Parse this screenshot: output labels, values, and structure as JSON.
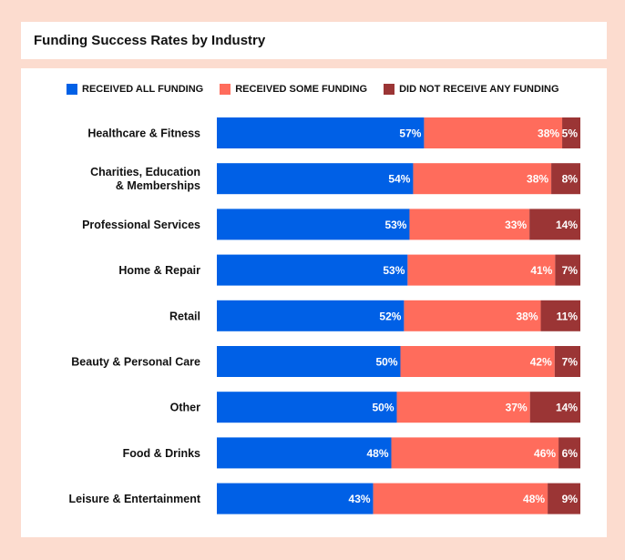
{
  "chart_data": {
    "type": "bar",
    "orientation": "horizontal",
    "stacked": true,
    "title": "Funding Success Rates by Industry",
    "categories": [
      [
        "Healthcare & Fitness"
      ],
      [
        "Charities, Education",
        "& Memberships"
      ],
      [
        "Professional Services"
      ],
      [
        "Home & Repair"
      ],
      [
        "Retail"
      ],
      [
        "Beauty & Personal Care"
      ],
      [
        "Other"
      ],
      [
        "Food & Drinks"
      ],
      [
        "Leisure & Entertainment"
      ]
    ],
    "series": [
      {
        "name": "RECEIVED ALL FUNDING",
        "color": "#0060e6",
        "values": [
          57,
          54,
          53,
          53,
          52,
          50,
          50,
          48,
          43
        ]
      },
      {
        "name": "RECEIVED SOME FUNDING",
        "color": "#ff6c5c",
        "values": [
          38,
          38,
          33,
          41,
          38,
          42,
          37,
          46,
          48
        ]
      },
      {
        "name": "DID NOT RECEIVE ANY FUNDING",
        "color": "#9b3535",
        "values": [
          5,
          8,
          14,
          7,
          11,
          7,
          14,
          6,
          9
        ]
      }
    ],
    "value_suffix": "%",
    "legend_position": "top",
    "grid": false
  }
}
